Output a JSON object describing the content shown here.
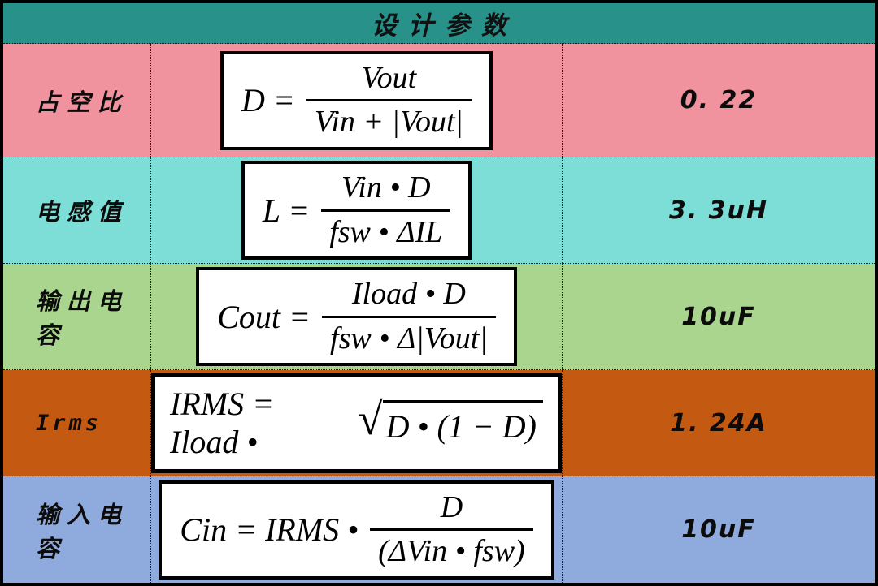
{
  "title": "设计参数",
  "colors": {
    "header_bg": "#27918a",
    "outer_border": "#000000",
    "formula_box_bg": "#ffffff",
    "row_pink": "#f0939e",
    "row_cyan": "#7cded6",
    "row_green": "#a9d58f",
    "row_orange": "#c45a11",
    "row_blue": "#8faadc"
  },
  "rows": [
    {
      "label": "占空比",
      "bg": "#f0939e",
      "formula": {
        "lhs": "D =",
        "num": "Vout",
        "den": "Vin + |Vout|"
      },
      "value": "0. 22"
    },
    {
      "label": "电感值",
      "bg": "#7cded6",
      "formula": {
        "lhs": "L =",
        "num": "Vin • D",
        "den": "fsw • ΔIL"
      },
      "value": "3. 3uH"
    },
    {
      "label": "输出电容",
      "bg": "#a9d58f",
      "formula": {
        "lhs": "Cout =",
        "num": "Iload • D",
        "den": "fsw • Δ|Vout|"
      },
      "value": "10uF"
    },
    {
      "label": "Irms",
      "bg": "#c45a11",
      "formula": {
        "pre": "IRMS = Iload •",
        "radical": "√",
        "radicand": "D • (1 − D)"
      },
      "value": "1. 24A"
    },
    {
      "label": "输入电容",
      "bg": "#8faadc",
      "formula": {
        "lhs": "Cin = IRMS •",
        "num": "D",
        "den": "(ΔVin • fsw)"
      },
      "value": "10uF"
    }
  ]
}
